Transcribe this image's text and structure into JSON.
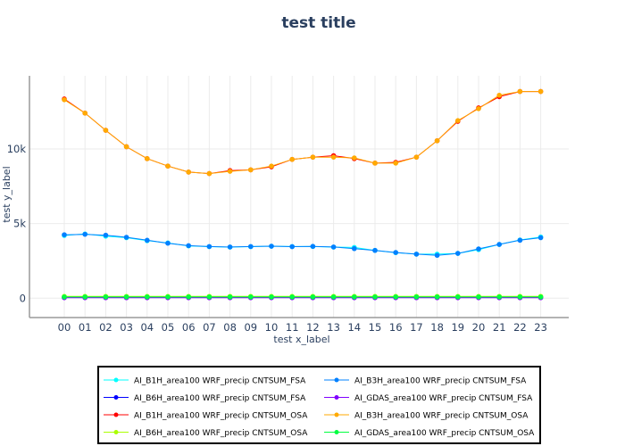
{
  "chart_data": {
    "type": "line",
    "title": "test title",
    "xlabel": "test x_label",
    "ylabel": "test y_label",
    "categories": [
      "00",
      "01",
      "02",
      "03",
      "04",
      "05",
      "06",
      "07",
      "08",
      "09",
      "10",
      "11",
      "12",
      "13",
      "14",
      "15",
      "16",
      "17",
      "18",
      "19",
      "20",
      "21",
      "22",
      "23"
    ],
    "ylim": [
      -1300,
      14900
    ],
    "yticks": [
      0,
      5000,
      10000
    ],
    "ytick_labels": [
      "0",
      "5k",
      "10k"
    ],
    "grid": true,
    "legend_position": "bottom",
    "series": [
      {
        "name": "AI_B1H_area100 WRF_precip CNTSUM_FSA",
        "color": "#00ffff",
        "values": [
          4200,
          4300,
          4150,
          4050,
          3850,
          3700,
          3500,
          3450,
          3420,
          3450,
          3480,
          3460,
          3460,
          3420,
          3400,
          3200,
          3050,
          2950,
          2950,
          3000,
          3250,
          3600,
          3900,
          4100
        ]
      },
      {
        "name": "AI_B3H_area100 WRF_precip CNTSUM_FSA",
        "color": "#0080ff",
        "values": [
          4250,
          4280,
          4220,
          4080,
          3880,
          3680,
          3520,
          3460,
          3430,
          3460,
          3480,
          3450,
          3470,
          3430,
          3320,
          3200,
          3060,
          2950,
          2870,
          3000,
          3300,
          3600,
          3880,
          4050
        ]
      },
      {
        "name": "AI_B6H_area100 WRF_precip CNTSUM_FSA",
        "color": "#0000ff",
        "values": [
          50,
          50,
          50,
          50,
          50,
          50,
          50,
          50,
          50,
          50,
          50,
          50,
          50,
          50,
          50,
          50,
          50,
          50,
          50,
          50,
          50,
          50,
          50,
          50
        ]
      },
      {
        "name": "AI_GDAS_area100 WRF_precip CNTSUM_FSA",
        "color": "#8000ff",
        "values": [
          30,
          30,
          30,
          30,
          30,
          30,
          30,
          30,
          30,
          30,
          30,
          30,
          30,
          30,
          30,
          30,
          30,
          30,
          30,
          30,
          30,
          30,
          30,
          30
        ]
      },
      {
        "name": "AI_B1H_area100 WRF_precip CNTSUM_OSA",
        "color": "#ff0000",
        "values": [
          13350,
          12400,
          11250,
          10150,
          9350,
          8850,
          8450,
          8350,
          8550,
          8600,
          8800,
          9300,
          9450,
          9550,
          9350,
          9050,
          9100,
          9450,
          10550,
          11850,
          12750,
          13500,
          13850,
          13850
        ]
      },
      {
        "name": "AI_B3H_area100 WRF_precip CNTSUM_OSA",
        "color": "#ffaa00",
        "values": [
          13300,
          12400,
          11250,
          10150,
          9350,
          8850,
          8450,
          8350,
          8500,
          8600,
          8850,
          9300,
          9450,
          9450,
          9400,
          9050,
          9050,
          9450,
          10550,
          11900,
          12700,
          13600,
          13850,
          13850
        ]
      },
      {
        "name": "AI_B6H_area100 WRF_precip CNTSUM_OSA",
        "color": "#aaff00",
        "values": [
          120,
          120,
          120,
          120,
          120,
          120,
          120,
          120,
          120,
          120,
          120,
          120,
          120,
          120,
          120,
          120,
          120,
          120,
          120,
          120,
          120,
          120,
          120,
          120
        ]
      },
      {
        "name": "AI_GDAS_area100 WRF_precip CNTSUM_OSA",
        "color": "#00ff40",
        "values": [
          80,
          80,
          80,
          80,
          80,
          80,
          80,
          80,
          80,
          80,
          80,
          80,
          80,
          80,
          80,
          80,
          80,
          80,
          80,
          80,
          80,
          80,
          80,
          80
        ]
      }
    ]
  }
}
